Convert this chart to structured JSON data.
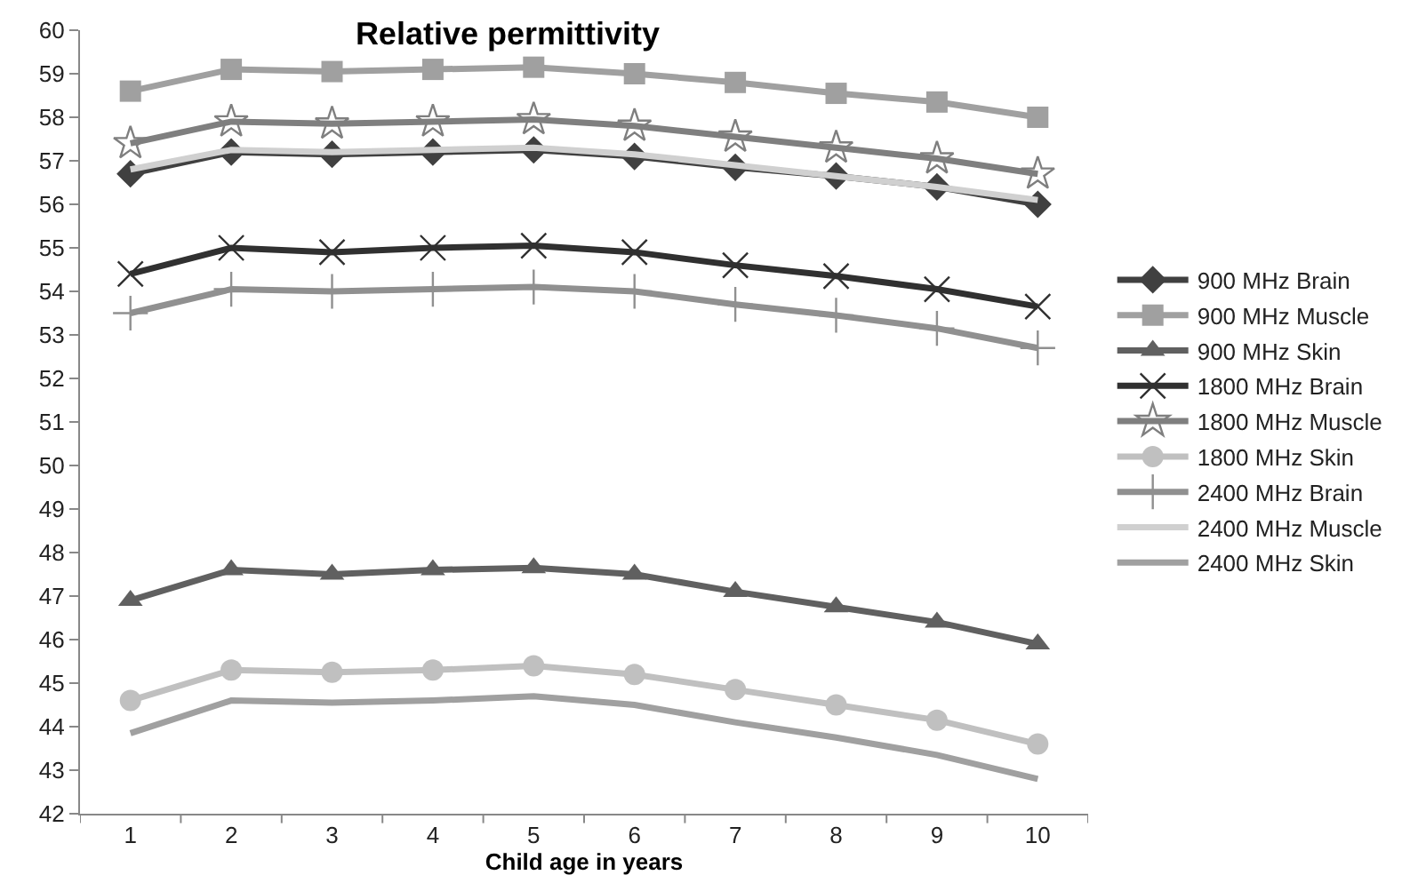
{
  "chart_data": {
    "type": "line",
    "title": "Relative permittivity",
    "xlabel": "Child age in years",
    "categories": [
      "1",
      "2",
      "3",
      "4",
      "5",
      "6",
      "7",
      "8",
      "9",
      "10"
    ],
    "ylim": [
      42,
      60
    ],
    "yticks": [
      42,
      43,
      44,
      45,
      46,
      47,
      48,
      49,
      50,
      51,
      52,
      53,
      54,
      55,
      56,
      57,
      58,
      59,
      60
    ],
    "legend": "right",
    "line_style": "solid",
    "series": [
      {
        "name": "900 MHz Brain",
        "color": "#404040",
        "marker": "diamond",
        "values": [
          56.7,
          57.2,
          57.15,
          57.2,
          57.25,
          57.1,
          56.85,
          56.65,
          56.4,
          56.0
        ]
      },
      {
        "name": "900 MHz Muscle",
        "color": "#a0a0a0",
        "marker": "square",
        "values": [
          58.6,
          59.1,
          59.05,
          59.1,
          59.15,
          59.0,
          58.8,
          58.55,
          58.35,
          58.0
        ]
      },
      {
        "name": "900 MHz Skin",
        "color": "#606060",
        "marker": "triangle",
        "values": [
          46.9,
          47.6,
          47.5,
          47.6,
          47.65,
          47.5,
          47.1,
          46.75,
          46.4,
          45.9
        ]
      },
      {
        "name": "1800 MHz Brain",
        "color": "#303030",
        "marker": "cross",
        "values": [
          54.4,
          55.0,
          54.9,
          55.0,
          55.05,
          54.9,
          54.6,
          54.35,
          54.05,
          53.65
        ]
      },
      {
        "name": "1800 MHz Muscle",
        "color": "#7f7f7f",
        "marker": "star",
        "values": [
          57.4,
          57.9,
          57.85,
          57.9,
          57.95,
          57.8,
          57.55,
          57.3,
          57.05,
          56.7
        ]
      },
      {
        "name": "1800 MHz Skin",
        "color": "#c0c0c0",
        "marker": "circle",
        "values": [
          44.6,
          45.3,
          45.25,
          45.3,
          45.4,
          45.2,
          44.85,
          44.5,
          44.15,
          43.6
        ]
      },
      {
        "name": "2400 MHz Brain",
        "color": "#909090",
        "marker": "plus",
        "values": [
          53.5,
          54.05,
          54.0,
          54.05,
          54.1,
          54.0,
          53.7,
          53.45,
          53.15,
          52.7
        ]
      },
      {
        "name": "2400 MHz Muscle",
        "color": "#d0d0d0",
        "marker": "none",
        "values": [
          56.8,
          57.25,
          57.2,
          57.25,
          57.3,
          57.15,
          56.9,
          56.65,
          56.4,
          56.1
        ]
      },
      {
        "name": "2400 MHz Skin",
        "color": "#a0a0a0",
        "marker": "none",
        "values": [
          43.85,
          44.6,
          44.55,
          44.6,
          44.7,
          44.5,
          44.1,
          43.75,
          43.35,
          42.8
        ]
      }
    ]
  }
}
